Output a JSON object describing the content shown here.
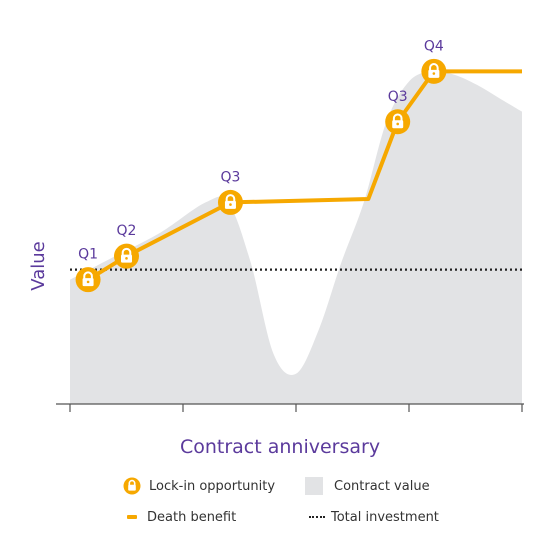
{
  "chart_data": {
    "type": "area",
    "ylabel": "Value",
    "xlabel": "Contract anniversary",
    "x_ticks": 5,
    "colors": {
      "contract_value": "#e2e3e5",
      "death_benefit": "#f6a800",
      "total_investment": "#222222",
      "label": "#5b3a9c"
    },
    "total_investment": 0.4,
    "contract_value": {
      "x": [
        0.0,
        0.1,
        0.2,
        0.3,
        0.35,
        0.4,
        0.45,
        0.5,
        0.55,
        0.6,
        0.65,
        0.7,
        0.75,
        0.8,
        0.85,
        0.9,
        0.95,
        1.0
      ],
      "y": [
        0.37,
        0.44,
        0.51,
        0.6,
        0.6,
        0.42,
        0.15,
        0.09,
        0.22,
        0.42,
        0.6,
        0.84,
        0.96,
        0.99,
        0.98,
        0.95,
        0.91,
        0.87
      ]
    },
    "death_benefit": {
      "x": [
        0.04,
        0.125,
        0.355,
        0.66,
        0.725,
        0.805,
        0.9,
        1.0
      ],
      "y": [
        0.37,
        0.44,
        0.6,
        0.61,
        0.84,
        0.99,
        0.99,
        0.99
      ]
    },
    "lock_ins": [
      {
        "label": "Q1",
        "x": 0.04,
        "y": 0.37
      },
      {
        "label": "Q2",
        "x": 0.125,
        "y": 0.44
      },
      {
        "label": "Q3",
        "x": 0.355,
        "y": 0.6
      },
      {
        "label": "Q3",
        "x": 0.725,
        "y": 0.84
      },
      {
        "label": "Q4",
        "x": 0.805,
        "y": 0.99
      }
    ],
    "legend": {
      "lock_in": "Lock-in opportunity",
      "contract_value": "Contract value",
      "death_benefit": "Death benefit",
      "total_investment": "Total investment"
    }
  }
}
